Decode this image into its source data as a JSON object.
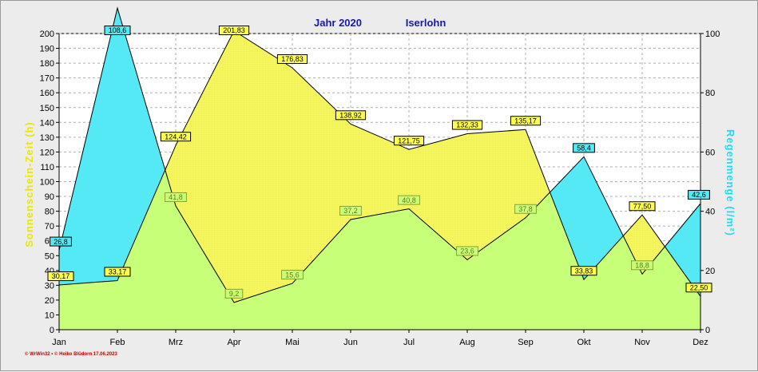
{
  "chart_data": {
    "type": "area",
    "title_left": "Jahr  2020",
    "title_right": "Iserlohn",
    "ylabel_left": "Sonnenschein-Zeit  (h)",
    "ylabel_right": "Regenmenge  (l/m²)",
    "categories": [
      "Jan",
      "Feb",
      "Mrz",
      "Apr",
      "Mai",
      "Jun",
      "Jul",
      "Aug",
      "Sep",
      "Okt",
      "Nov",
      "Dez"
    ],
    "y_left": {
      "min": 0,
      "max": 200,
      "step": 10
    },
    "y_right": {
      "min": 0,
      "max": 100,
      "step": 20
    },
    "grid": true,
    "series": [
      {
        "name": "Sonnenschein-Zeit",
        "axis": "left",
        "color": "#ffff40",
        "values": [
          30.17,
          33.17,
          124.42,
          201.83,
          176.83,
          138.92,
          121.75,
          132.33,
          135.17,
          33.83,
          77.5,
          22.5
        ],
        "labels": [
          "30,17",
          "33,17",
          "124,42",
          "201,83",
          "176,83",
          "138,92",
          "121,75",
          "132,33",
          "135,17",
          "33,83",
          "77,50",
          "22,50"
        ]
      },
      {
        "name": "Regenmenge",
        "axis": "right",
        "color": "#55e8f5",
        "values": [
          26.8,
          108.6,
          41.8,
          9.2,
          15.6,
          37.2,
          40.8,
          23.6,
          37.8,
          58.4,
          18.8,
          42.6
        ],
        "labels": [
          "26,8",
          "108,6",
          "41,8",
          "9,2",
          "15,6",
          "37,2",
          "40,8",
          "23,6",
          "37,8",
          "58,4",
          "18,8",
          "42,6"
        ]
      }
    ],
    "overlap_color": "#c8ff78"
  },
  "footer": {
    "credit": "© WrWin32  •  © Heiko Blüdorn  17.06.2023"
  }
}
